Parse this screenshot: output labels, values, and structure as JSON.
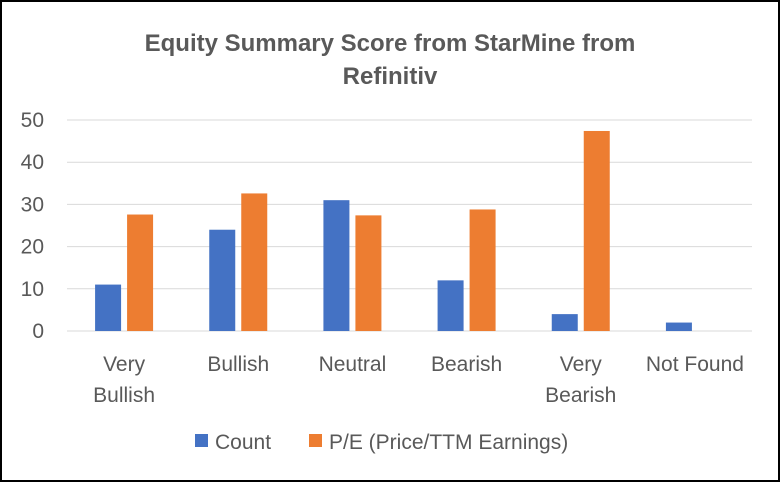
{
  "chart_data": {
    "type": "bar",
    "title_lines": [
      "Equity Summary Score from StarMine from",
      "Refinitiv"
    ],
    "categories": [
      [
        "Very",
        "Bullish"
      ],
      [
        "Bullish"
      ],
      [
        "Neutral"
      ],
      [
        "Bearish"
      ],
      [
        "Very",
        "Bearish"
      ],
      [
        "Not Found"
      ]
    ],
    "series": [
      {
        "name": "Count",
        "color": "#4472C4",
        "values": [
          11,
          24,
          31,
          12,
          4,
          2
        ]
      },
      {
        "name": "P/E (Price/TTM Earnings)",
        "color": "#ED7D31",
        "values": [
          27.6,
          32.6,
          27.4,
          28.8,
          47.4,
          null
        ]
      }
    ],
    "ylim": [
      0,
      50
    ],
    "yticks": [
      0,
      10,
      20,
      30,
      40,
      50
    ],
    "grid": true,
    "legend": "bottom",
    "xlabel": "",
    "ylabel": ""
  }
}
